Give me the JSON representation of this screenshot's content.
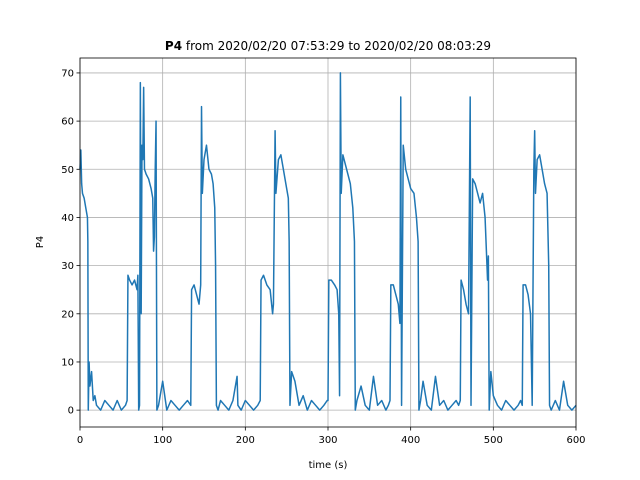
{
  "chart_data": {
    "type": "line",
    "title_bold": "P4",
    "title": "from 2020/02/20 07:53:29 to 2020/02/20 08:03:29",
    "xlabel": "time (s)",
    "ylabel": "P4",
    "color": "#1f77b4",
    "grid": true,
    "xlim": [
      0,
      600
    ],
    "xticks": [
      0,
      100,
      200,
      300,
      400,
      500,
      600
    ],
    "ylim": [
      -3.5,
      73.1
    ],
    "yticks": [
      0,
      10,
      20,
      30,
      40,
      50,
      60,
      70
    ],
    "x": [
      0,
      1,
      2,
      3,
      5,
      7,
      9,
      9.5,
      10,
      11,
      12,
      14,
      16,
      18,
      20,
      25,
      30,
      35,
      40,
      45,
      50,
      55,
      57,
      58,
      60,
      63,
      66,
      69,
      70,
      71,
      72,
      73,
      74,
      75,
      76,
      77,
      78,
      80,
      83,
      86,
      88,
      89,
      90,
      91,
      92,
      93,
      95,
      100,
      105,
      110,
      115,
      120,
      125,
      130,
      134,
      135,
      138,
      141,
      144,
      146,
      147,
      148,
      150,
      153,
      156,
      159,
      161,
      163,
      164,
      165,
      167,
      170,
      175,
      180,
      185,
      190,
      191,
      195,
      200,
      205,
      210,
      215,
      218,
      219,
      222,
      226,
      230,
      233,
      234,
      236,
      237,
      240,
      243,
      246,
      249,
      252,
      253,
      254,
      256,
      260,
      265,
      270,
      275,
      280,
      285,
      290,
      295,
      299,
      300,
      301,
      304,
      308,
      311,
      313,
      314,
      315,
      316,
      318,
      321,
      324,
      327,
      330,
      332,
      333,
      335,
      340,
      345,
      350,
      355,
      360,
      365,
      370,
      373,
      375,
      376,
      379,
      382,
      385,
      387,
      388,
      389,
      391,
      394,
      397,
      400,
      404,
      407,
      409,
      410,
      412,
      415,
      420,
      425,
      430,
      435,
      440,
      445,
      450,
      455,
      458,
      460,
      461,
      464,
      467,
      470,
      472,
      473,
      475,
      478,
      481,
      484,
      487,
      490,
      493,
      494,
      495,
      497,
      500,
      505,
      510,
      515,
      520,
      525,
      530,
      533,
      535,
      536,
      539,
      542,
      545,
      547,
      549,
      550,
      551,
      553,
      556,
      559,
      562,
      565,
      567,
      568,
      570,
      575,
      580,
      585,
      590,
      595,
      600
    ],
    "values": [
      50,
      54,
      47,
      45,
      44,
      42,
      40,
      35,
      0,
      10,
      5,
      8,
      2,
      3,
      1,
      0,
      2,
      1,
      0,
      2,
      0,
      1,
      2,
      28,
      27,
      26,
      27,
      25,
      28,
      0,
      1,
      68,
      20,
      55,
      52,
      67,
      50,
      49,
      48,
      46,
      44,
      33,
      36,
      50,
      60,
      0,
      1,
      6,
      0,
      2,
      1,
      0,
      1,
      2,
      1,
      25,
      26,
      24,
      22,
      26,
      63,
      45,
      52,
      55,
      50,
      49,
      47,
      42,
      30,
      1,
      0,
      2,
      1,
      0,
      2,
      7,
      1,
      0,
      2,
      1,
      0,
      1,
      2,
      27,
      28,
      26,
      25,
      20,
      22,
      58,
      45,
      52,
      53,
      50,
      47,
      44,
      35,
      1,
      8,
      6,
      1,
      3,
      0,
      2,
      1,
      0,
      1,
      2,
      2,
      27,
      27,
      26,
      25,
      20,
      3,
      70,
      45,
      53,
      51,
      49,
      47,
      42,
      35,
      0,
      2,
      5,
      1,
      0,
      7,
      1,
      2,
      0,
      1,
      2,
      26,
      26,
      24,
      22,
      18,
      65,
      1,
      55,
      50,
      48,
      46,
      45,
      40,
      35,
      0,
      2,
      6,
      1,
      0,
      7,
      1,
      2,
      0,
      1,
      2,
      1,
      2,
      27,
      25,
      22,
      20,
      65,
      1,
      48,
      47,
      45,
      43,
      45,
      40,
      27,
      32,
      0,
      8,
      3,
      1,
      0,
      2,
      1,
      0,
      1,
      2,
      1,
      26,
      26,
      24,
      20,
      1,
      50,
      58,
      45,
      52,
      53,
      50,
      47,
      45,
      30,
      1,
      0,
      2,
      0,
      6,
      1,
      0,
      1
    ]
  }
}
